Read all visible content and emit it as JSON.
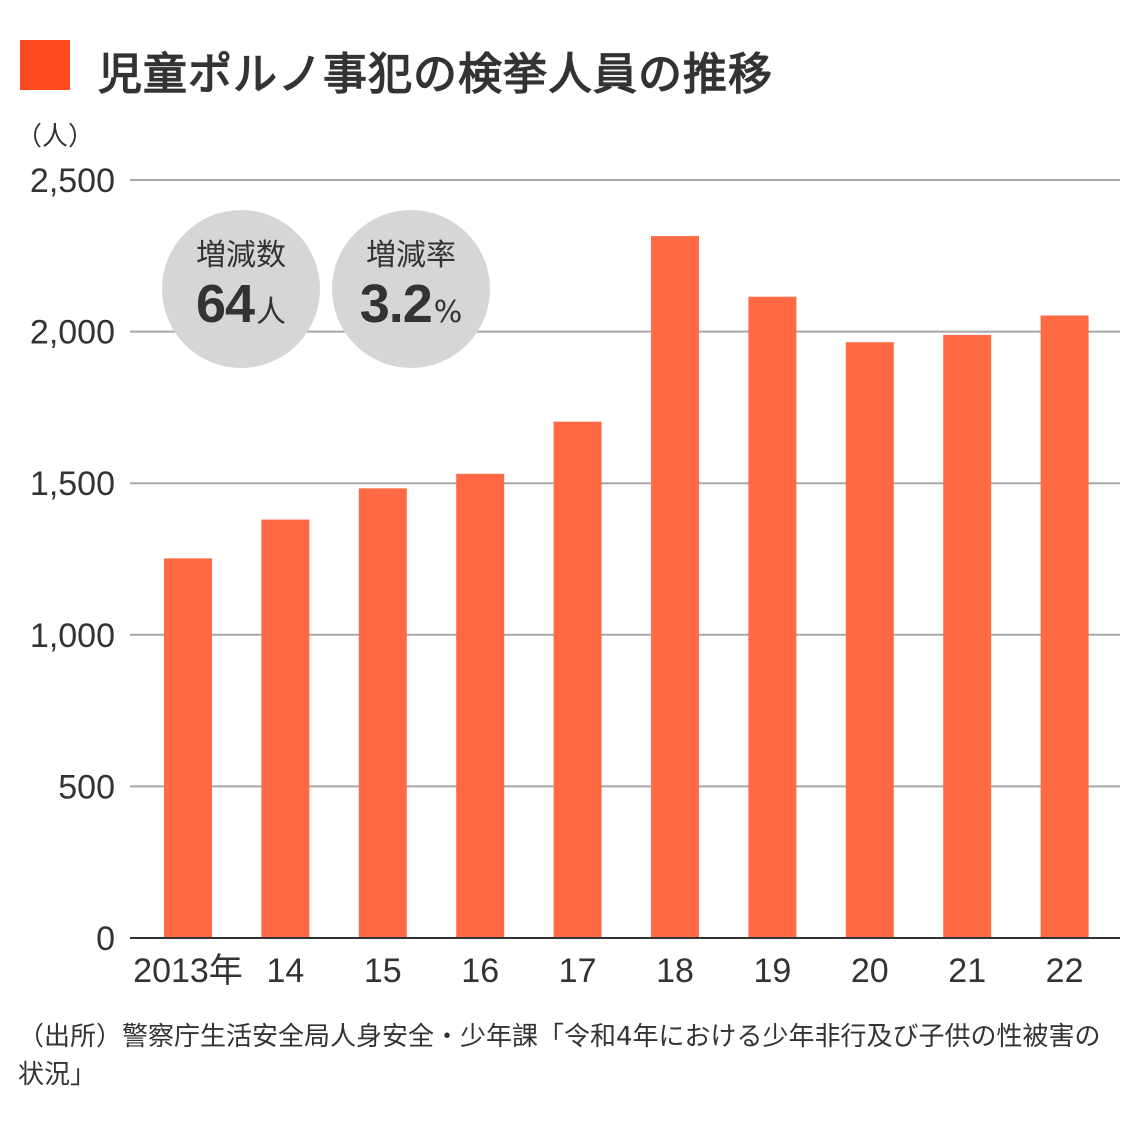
{
  "header": {
    "title": "児童ポルノ事犯の検挙人員の推移",
    "accent_color": "#ff4b1f"
  },
  "badges": [
    {
      "label": "増減数",
      "value": "64",
      "unit": "人"
    },
    {
      "label": "増減率",
      "value": "3.2",
      "unit": "%"
    }
  ],
  "source": "（出所）警察庁生活安全局人身安全・少年課「令和4年における少年非行及び子供の性被害の状況」",
  "chart_data": {
    "type": "bar",
    "unit_label": "（人）",
    "categories": [
      "2013年",
      "14",
      "15",
      "16",
      "17",
      "18",
      "19",
      "20",
      "21",
      "22"
    ],
    "values": [
      1252,
      1380,
      1483,
      1531,
      1703,
      2315,
      2115,
      1965,
      1989,
      2053
    ],
    "ylim": [
      0,
      2500
    ],
    "yticks": [
      0,
      500,
      1000,
      1500,
      2000,
      2500
    ],
    "ytick_labels": [
      "0",
      "500",
      "1,000",
      "1,500",
      "2,000",
      "2,500"
    ],
    "bar_color": "#ff6a45",
    "grid": true,
    "legend": "none"
  }
}
